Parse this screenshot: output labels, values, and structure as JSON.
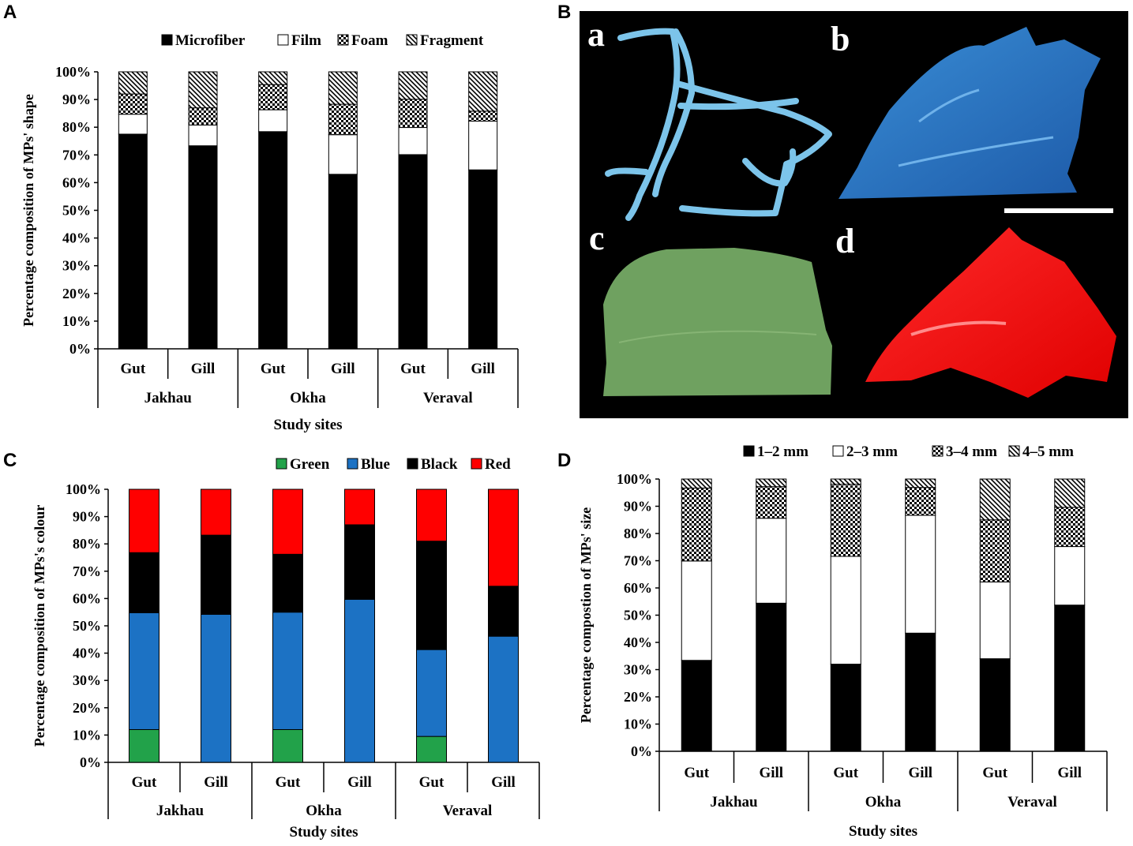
{
  "panels": {
    "A": "A",
    "B": "B",
    "C": "C",
    "D": "D"
  },
  "photos": {
    "labels": [
      "a",
      "b",
      "c",
      "d"
    ]
  },
  "chart_data": [
    {
      "id": "A",
      "type": "bar",
      "stacked": true,
      "categories": [
        "Gut",
        "Gill",
        "Gut",
        "Gill",
        "Gut",
        "Gill"
      ],
      "groups": [
        "Jakhau",
        "Okha",
        "Veraval"
      ],
      "xlabel": "Study sites",
      "ylabel": "Percentage composition of MPs' shape",
      "yticks": [
        "0%",
        "10%",
        "20%",
        "30%",
        "40%",
        "50%",
        "60%",
        "70%",
        "80%",
        "90%",
        "100%"
      ],
      "ylim": [
        0,
        100
      ],
      "legend_position": "top-right",
      "series": [
        {
          "name": "Microfiber",
          "fill": "black",
          "values": [
            77.5,
            73.3,
            78.4,
            63.0,
            70.1,
            64.6
          ]
        },
        {
          "name": "Film",
          "fill": "white",
          "values": [
            7.2,
            7.5,
            7.9,
            14.3,
            9.8,
            17.6
          ]
        },
        {
          "name": "Foam",
          "fill": "check",
          "values": [
            7.3,
            6.2,
            9.1,
            11.0,
            10.2,
            3.6
          ]
        },
        {
          "name": "Fragment",
          "fill": "hatch",
          "values": [
            8.0,
            13.0,
            4.6,
            11.7,
            9.9,
            14.2
          ]
        }
      ]
    },
    {
      "id": "C",
      "type": "bar",
      "stacked": true,
      "categories": [
        "Gut",
        "Gill",
        "Gut",
        "Gill",
        "Gut",
        "Gill"
      ],
      "groups": [
        "Jakhau",
        "Okha",
        "Veraval"
      ],
      "xlabel": "Study sites",
      "ylabel": "Percentage composition of MPs's colour",
      "yticks": [
        "0%",
        "10%",
        "20%",
        "30%",
        "40%",
        "50%",
        "60%",
        "70%",
        "80%",
        "90%",
        "100%"
      ],
      "ylim": [
        0,
        100
      ],
      "legend_position": "top-right",
      "series": [
        {
          "name": "Green",
          "fill": "#22a24a",
          "values": [
            12.0,
            0,
            12.0,
            0,
            9.5,
            0
          ]
        },
        {
          "name": "Blue",
          "fill": "#1c72c4",
          "values": [
            42.8,
            54.2,
            43.0,
            59.7,
            31.8,
            46.2
          ]
        },
        {
          "name": "Black",
          "fill": "#000000",
          "values": [
            22.0,
            29.0,
            21.2,
            27.3,
            39.7,
            18.3
          ]
        },
        {
          "name": "Red",
          "fill": "#ff0000",
          "values": [
            23.2,
            16.8,
            23.8,
            13.0,
            19.0,
            35.5
          ]
        }
      ]
    },
    {
      "id": "D",
      "type": "bar",
      "stacked": true,
      "categories": [
        "Gut",
        "Gill",
        "Gut",
        "Gill",
        "Gut",
        "Gill"
      ],
      "groups": [
        "Jakhau",
        "Okha",
        "Veraval"
      ],
      "xlabel": "Study sites",
      "ylabel": "Percentage compostion of MPs' size",
      "yticks": [
        "0%",
        "10%",
        "20%",
        "30%",
        "40%",
        "50%",
        "60%",
        "70%",
        "80%",
        "90%",
        "100%"
      ],
      "ylim": [
        0,
        100
      ],
      "legend_position": "top-right",
      "series": [
        {
          "name": "1–2 mm",
          "fill": "black",
          "values": [
            33.4,
            54.4,
            32.0,
            43.4,
            34.0,
            53.7
          ]
        },
        {
          "name": "2–3 mm",
          "fill": "white",
          "values": [
            36.5,
            31.2,
            39.6,
            43.3,
            28.2,
            21.5
          ]
        },
        {
          "name": "3–4 mm",
          "fill": "check",
          "values": [
            26.8,
            11.6,
            26.5,
            10.2,
            22.8,
            14.4
          ]
        },
        {
          "name": "4–5 mm",
          "fill": "hatch",
          "values": [
            3.3,
            2.8,
            1.9,
            3.1,
            15.0,
            10.4
          ]
        }
      ]
    }
  ]
}
